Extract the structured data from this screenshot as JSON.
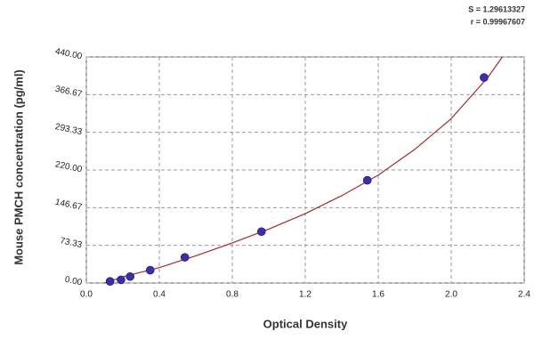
{
  "chart_data": {
    "type": "scatter",
    "x_label": "Optical Density",
    "y_label": "Mouse PMCH concentration (pg/ml)",
    "annotations": [
      "S = 1.29613327",
      "r = 0.99967607"
    ],
    "xlim": [
      0,
      2.4
    ],
    "ylim": [
      0,
      440
    ],
    "xticks": [
      {
        "value": 0,
        "label": "0.0"
      },
      0.4,
      0.8,
      1.2,
      1.6,
      {
        "value": 2,
        "label": "2.0"
      },
      2.4
    ],
    "yticks": [
      {
        "value": 0,
        "label": "0.00"
      },
      73.33,
      146.67,
      {
        "value": 220,
        "label": "220.00"
      },
      293.33,
      366.67,
      {
        "value": 440,
        "label": "440.00"
      }
    ],
    "grid": true,
    "series": [
      {
        "type": "line",
        "color": "#a52a2a",
        "x": [
          0.1,
          0.2,
          0.4,
          0.6,
          0.8,
          1.0,
          1.2,
          1.4,
          1.6,
          1.8,
          2.0,
          2.2,
          2.28
        ],
        "values": [
          0,
          12,
          30,
          53,
          78,
          105,
          135,
          170,
          210,
          260,
          320,
          400,
          440
        ]
      },
      {
        "type": "scatter",
        "color": "#3a2fa6",
        "x": [
          0.13,
          0.19,
          0.24,
          0.35,
          0.54,
          0.96,
          1.54,
          2.18
        ],
        "values": [
          3.12,
          6.25,
          12.5,
          25,
          50,
          100,
          200,
          400
        ]
      }
    ]
  }
}
